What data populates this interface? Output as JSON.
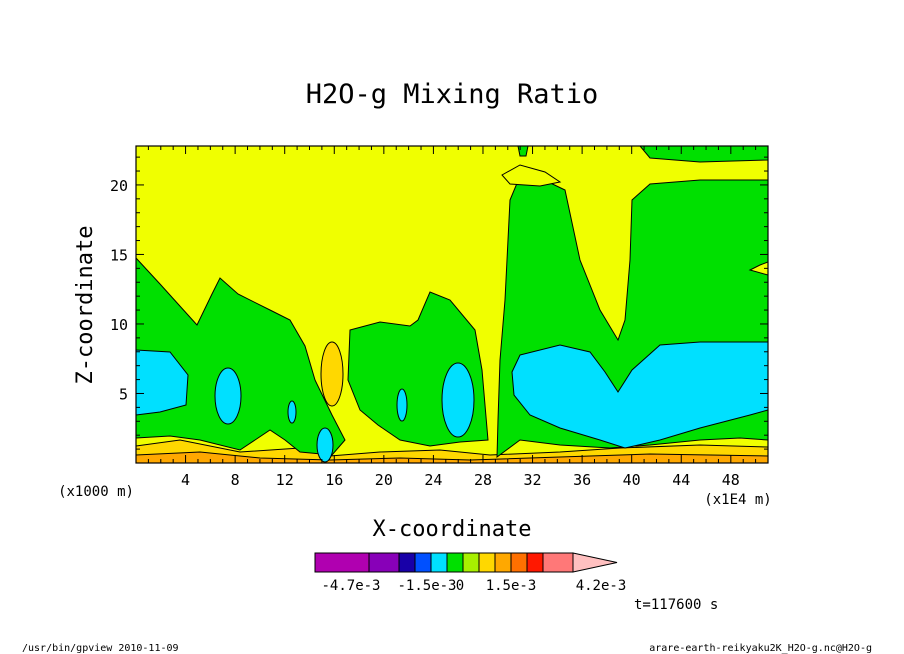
{
  "chart_data": {
    "type": "heatmap",
    "title": "H2O-g Mixing Ratio",
    "xlabel": "X-coordinate",
    "ylabel": "Z-coordinate",
    "x_unit_label": "(x1E4 m)",
    "y_unit_label": "(x1000 m)",
    "xlim": [
      0,
      51
    ],
    "ylim": [
      0,
      22.8
    ],
    "x_ticks": [
      4,
      8,
      12,
      16,
      20,
      24,
      28,
      32,
      36,
      40,
      44,
      48
    ],
    "x_tick_labels": [
      "4",
      "8",
      "12",
      "16",
      "20",
      "24",
      "28",
      "32",
      "36",
      "40",
      "44",
      "48"
    ],
    "y_ticks": [
      5,
      10,
      15,
      20
    ],
    "y_tick_labels": [
      "5",
      "10",
      "15",
      "20"
    ],
    "time_label": "t=117600 s",
    "colorbar": {
      "colors": [
        "#b000b0",
        "#8800b8",
        "#1800a8",
        "#0050ff",
        "#00e0ff",
        "#00e000",
        "#a8f000",
        "#ffd800",
        "#ffa800",
        "#ff7000",
        "#ff1800",
        "#ff7878",
        "#ffc0c0"
      ],
      "labels": [
        "-4.7e-3",
        "-1.5e-3",
        "0",
        "1.5e-3",
        "4.2e-3"
      ],
      "label_positions": [
        0,
        3,
        4.5,
        6,
        9
      ],
      "triangle_end": "right"
    },
    "fields": {
      "background": "yellow",
      "green_regions": [
        "x 0-10, z 1-15 left plume",
        "x 10-15, z 1-13 secondary plume",
        "x 18-28, z 1-12 central plume",
        "x 29-51, z 0.5-21 large right region"
      ],
      "cyan_regions": [
        {
          "x_center": 2.5,
          "z_center": 6,
          "note": "left blob"
        },
        {
          "x_center": 7.6,
          "z_center": 5,
          "note": ""
        },
        {
          "x_center": 12.6,
          "z_center": 3.5,
          "note": ""
        },
        {
          "x_center": 15.2,
          "z_center": 1.3,
          "note": ""
        },
        {
          "x_center": 21.5,
          "z_center": 4.3,
          "note": ""
        },
        {
          "x_center": 26,
          "z_center": 4.5,
          "note": ""
        },
        {
          "x_center": 41,
          "z_center": 5,
          "note": "large right blob"
        }
      ],
      "orange_regions": [
        {
          "x_center": 15.8,
          "z_center": 6.8
        }
      ]
    }
  },
  "footer": {
    "left": "/usr/bin/gpview  2010-11-09",
    "right": "arare-earth-reikyaku2K_H2O-g.nc@H2O-g"
  }
}
